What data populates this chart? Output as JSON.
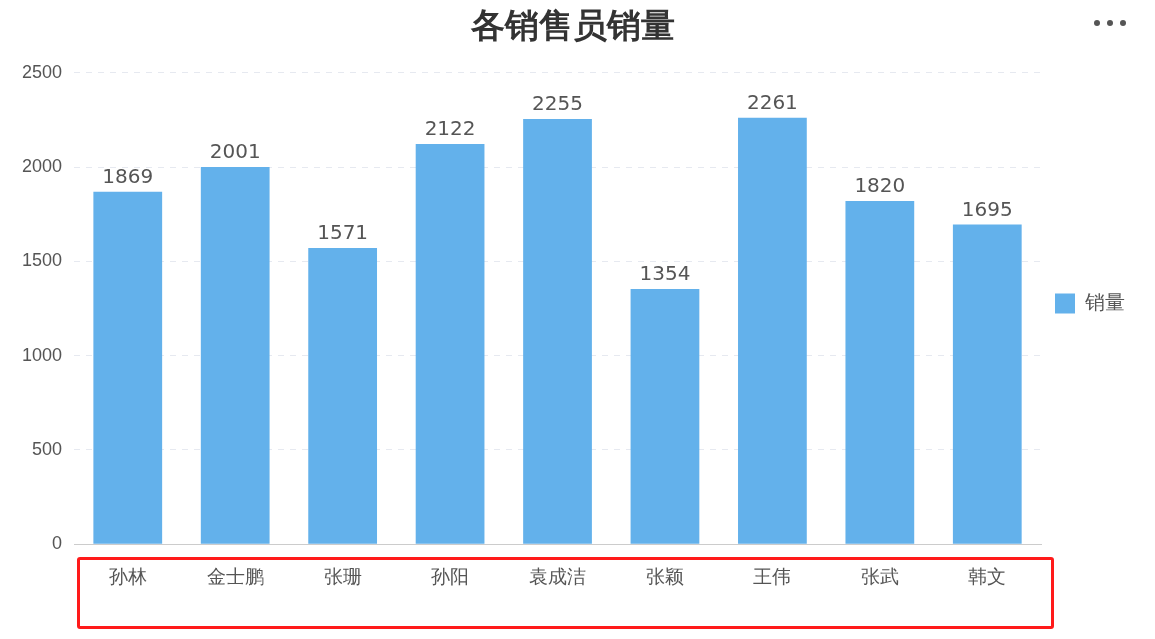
{
  "chart_data": {
    "type": "bar",
    "title": "各销售员销量",
    "categories": [
      "孙林",
      "金士鹏",
      "张珊",
      "孙阳",
      "袁成洁",
      "张颖",
      "王伟",
      "张武",
      "韩文"
    ],
    "series": [
      {
        "name": "销量",
        "color": "#63b1eb",
        "values": [
          1869,
          2001,
          1571,
          2122,
          2255,
          1354,
          2261,
          1820,
          1695
        ]
      }
    ],
    "ylim": [
      0,
      2500
    ],
    "yticks": [
      0,
      500,
      1000,
      1500,
      2000,
      2500
    ],
    "grid": "y",
    "legend": "right",
    "data_labels": true
  }
}
